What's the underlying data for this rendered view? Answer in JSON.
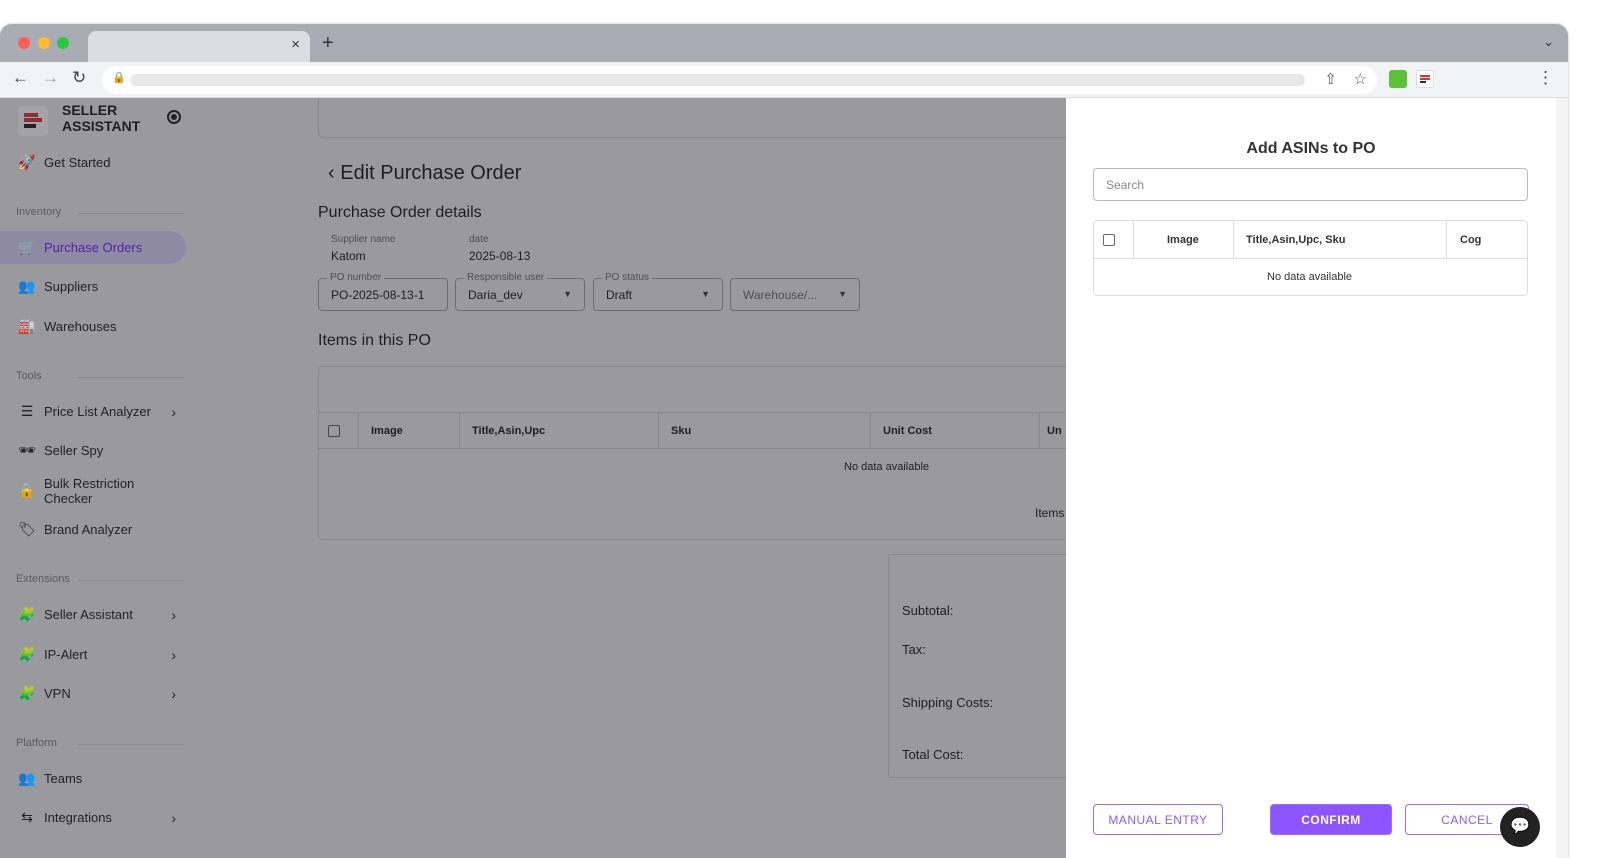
{
  "browser": {
    "tab_close": "×",
    "new_tab": "+",
    "tab_menu": "⌄"
  },
  "sidebar": {
    "brand_line1": "SELLER",
    "brand_line2": "ASSISTANT",
    "get_started": "Get Started",
    "sections": {
      "inventory": "Inventory",
      "tools": "Tools",
      "extensions": "Extensions",
      "platform": "Platform"
    },
    "items": [
      {
        "label": "Purchase Orders",
        "icon": "cart-icon",
        "active": true
      },
      {
        "label": "Suppliers",
        "icon": "users-icon"
      },
      {
        "label": "Warehouses",
        "icon": "warehouse-icon"
      },
      {
        "label": "Price List Analyzer",
        "icon": "list-icon",
        "chevron": true
      },
      {
        "label": "Seller Spy",
        "icon": "spy-icon"
      },
      {
        "label": "Bulk Restriction Checker",
        "icon": "lock-icon"
      },
      {
        "label": "Brand Analyzer",
        "icon": "tag-search-icon"
      },
      {
        "label": "Seller Assistant",
        "icon": "puzzle-icon",
        "chevron": true
      },
      {
        "label": "IP-Alert",
        "icon": "puzzle-icon",
        "chevron": true
      },
      {
        "label": "VPN",
        "icon": "puzzle-icon",
        "chevron": true
      },
      {
        "label": "Teams",
        "icon": "users-icon"
      },
      {
        "label": "Integrations",
        "icon": "swap-icon",
        "chevron": true
      }
    ],
    "accent": "#7a4cf0"
  },
  "main": {
    "title": "Edit Purchase Order",
    "details_heading": "Purchase Order details",
    "supplier_label": "Supplier name",
    "supplier": "Katom",
    "date_label": "date",
    "date": "2025-08-13",
    "po_number_label": "PO number",
    "po_number": "PO-2025-08-13-1",
    "user_label": "Responsible user",
    "user": "Daria_dev",
    "status_label": "PO status",
    "status": "Draft",
    "warehouse_placeholder": "Warehouse/...",
    "items_heading": "Items in this PO",
    "columns": [
      "Image",
      "Title,Asin,Upc",
      "Sku",
      "Unit Cost",
      "Un"
    ],
    "no_data": "No data available",
    "items_footer": "Items",
    "totals": {
      "subtotal": "Subtotal:",
      "tax": "Tax:",
      "shipping": "Shipping Costs:",
      "total": "Total Cost:"
    }
  },
  "drawer": {
    "title": "Add ASINs to PO",
    "search_placeholder": "Search",
    "columns": [
      "Image",
      "Title,Asin,Upc, Sku",
      "Cog"
    ],
    "no_data": "No data available",
    "manual_entry": "MANUAL ENTRY",
    "confirm": "CONFIRM",
    "cancel": "CANCEL",
    "accent": "#8c55ff"
  }
}
